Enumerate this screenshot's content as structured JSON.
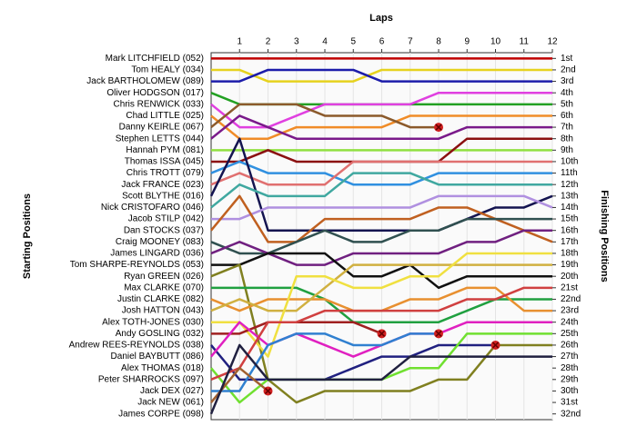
{
  "chart_data": {
    "type": "line",
    "title": "Laps",
    "y_label": "Starting Positions",
    "y2_label": "Finishing Positions",
    "inverted_y": true,
    "x": [
      0,
      1,
      2,
      3,
      4,
      5,
      6,
      7,
      8,
      9,
      10,
      11,
      12
    ],
    "xlim": [
      0,
      12
    ],
    "xticks": [
      1,
      2,
      3,
      4,
      5,
      6,
      7,
      8,
      9,
      10,
      11,
      12
    ],
    "ylim": [
      0.5,
      32.5
    ],
    "y2lim": [
      0.5,
      32.5
    ],
    "y2ticks": [
      {
        "value": 1,
        "label": "1st"
      },
      {
        "value": 2,
        "label": "2nd"
      },
      {
        "value": 3,
        "label": "3rd"
      },
      {
        "value": 4,
        "label": "4th"
      },
      {
        "value": 5,
        "label": "5th"
      },
      {
        "value": 6,
        "label": "6th"
      },
      {
        "value": 7,
        "label": "7th"
      },
      {
        "value": 8,
        "label": "8th"
      },
      {
        "value": 9,
        "label": "9th"
      },
      {
        "value": 10,
        "label": "10th"
      },
      {
        "value": 11,
        "label": "11th"
      },
      {
        "value": 12,
        "label": "12th"
      },
      {
        "value": 13,
        "label": "13th"
      },
      {
        "value": 14,
        "label": "14th"
      },
      {
        "value": 15,
        "label": "15th"
      },
      {
        "value": 16,
        "label": "16th"
      },
      {
        "value": 17,
        "label": "17th"
      },
      {
        "value": 18,
        "label": "18th"
      },
      {
        "value": 19,
        "label": "19th"
      },
      {
        "value": 20,
        "label": "20th"
      },
      {
        "value": 21,
        "label": "21st"
      },
      {
        "value": 22,
        "label": "22nd"
      },
      {
        "value": 23,
        "label": "23rd"
      },
      {
        "value": 24,
        "label": "24th"
      },
      {
        "value": 25,
        "label": "25th"
      },
      {
        "value": 26,
        "label": "26th"
      },
      {
        "value": 27,
        "label": "27th"
      },
      {
        "value": 28,
        "label": "28th"
      },
      {
        "value": 29,
        "label": "29th"
      },
      {
        "value": 30,
        "label": "30th"
      },
      {
        "value": 31,
        "label": "31st"
      },
      {
        "value": 32,
        "label": "32nd"
      }
    ],
    "series": [
      {
        "name": "Mark LITCHFIELD (052)",
        "color": "#c00000",
        "values": [
          1,
          1,
          1,
          1,
          1,
          1,
          1,
          1,
          1,
          1,
          1,
          1,
          1
        ]
      },
      {
        "name": "Tom HEALY (034)",
        "color": "#e6d21e",
        "values": [
          2,
          2,
          3,
          3,
          3,
          3,
          2,
          2,
          2,
          2,
          2,
          2,
          2
        ]
      },
      {
        "name": "Jack BARTHOLOMEW (089)",
        "color": "#1c1caa",
        "values": [
          3,
          3,
          2,
          2,
          2,
          2,
          3,
          3,
          3,
          3,
          3,
          3,
          3
        ]
      },
      {
        "name": "Oliver HODGSON (017)",
        "color": "#22a022",
        "values": [
          4,
          5,
          5,
          5,
          5,
          5,
          5,
          5,
          5,
          5,
          5,
          5,
          5
        ]
      },
      {
        "name": "Chris RENWICK (033)",
        "color": "#e040e0",
        "values": [
          5,
          7,
          7,
          6,
          5,
          5,
          5,
          5,
          4,
          4,
          4,
          4,
          4
        ]
      },
      {
        "name": "Chad LITTLE (025)",
        "color": "#f08c28",
        "values": [
          6,
          8,
          8,
          7,
          7,
          7,
          7,
          6,
          6,
          6,
          6,
          6,
          6
        ]
      },
      {
        "name": "Danny KEIRLE (067)",
        "color": "#8b5a2b",
        "values": [
          7,
          5,
          5,
          5,
          6,
          6,
          6,
          7,
          7,
          null,
          null,
          null,
          null
        ]
      },
      {
        "name": "Stephen LETTS (044)",
        "color": "#7a1a8a",
        "values": [
          8,
          6,
          7,
          8,
          8,
          8,
          8,
          8,
          8,
          7,
          7,
          7,
          7
        ]
      },
      {
        "name": "Hannah PYM (081)",
        "color": "#90e040",
        "values": [
          9,
          9,
          9,
          9,
          9,
          9,
          9,
          9,
          9,
          9,
          9,
          9,
          9
        ]
      },
      {
        "name": "Thomas ISSA (045)",
        "color": "#8b1010",
        "values": [
          10,
          10,
          9,
          10,
          10,
          10,
          10,
          10,
          10,
          8,
          8,
          8,
          8
        ]
      },
      {
        "name": "Chris TROTT (079)",
        "color": "#3090e0",
        "values": [
          11,
          10,
          11,
          11,
          11,
          12,
          12,
          12,
          11,
          11,
          11,
          11,
          11
        ]
      },
      {
        "name": "Jack FRANCE (023)",
        "color": "#e07070",
        "values": [
          12,
          11,
          12,
          12,
          12,
          10,
          10,
          10,
          10,
          10,
          10,
          10,
          10
        ]
      },
      {
        "name": "Scott BLYTHE (016)",
        "color": "#141450",
        "values": [
          13,
          8,
          16,
          16,
          16,
          16,
          16,
          16,
          16,
          15,
          14,
          14,
          13
        ]
      },
      {
        "name": "Nick CRISTOFARO (046)",
        "color": "#40a8a0",
        "values": [
          14,
          12,
          13,
          13,
          13,
          11,
          11,
          11,
          12,
          12,
          12,
          12,
          12
        ]
      },
      {
        "name": "Jacob STILP (042)",
        "color": "#b090e0",
        "values": [
          15,
          15,
          14,
          14,
          14,
          14,
          14,
          14,
          13,
          13,
          13,
          13,
          14
        ]
      },
      {
        "name": "Dan STOCKS (037)",
        "color": "#c06020",
        "values": [
          16,
          13,
          17,
          17,
          15,
          15,
          15,
          15,
          14,
          14,
          15,
          16,
          17
        ]
      },
      {
        "name": "Craig MOONEY (083)",
        "color": "#305050",
        "values": [
          17,
          18,
          18,
          17,
          16,
          17,
          17,
          16,
          16,
          15,
          15,
          15,
          15
        ]
      },
      {
        "name": "James LINGARD (036)",
        "color": "#702080",
        "values": [
          18,
          17,
          18,
          19,
          19,
          18,
          18,
          18,
          18,
          17,
          17,
          16,
          16
        ]
      },
      {
        "name": "Tom SHARPE-REYNOLDS (053)",
        "color": "#101010",
        "values": [
          19,
          19,
          18,
          18,
          18,
          20,
          20,
          19,
          21,
          20,
          20,
          20,
          20
        ]
      },
      {
        "name": "Ryan GREEN (026)",
        "color": "#808020",
        "values": [
          20,
          19,
          29,
          31,
          30,
          30,
          30,
          30,
          29,
          29,
          26,
          26,
          26
        ]
      },
      {
        "name": "Max CLARKE (070)",
        "color": "#20a040",
        "values": [
          21,
          21,
          21,
          21,
          22,
          24,
          24,
          24,
          24,
          23,
          22,
          22,
          22
        ]
      },
      {
        "name": "Justin CLARKE (082)",
        "color": "#e89030",
        "values": [
          22,
          23,
          22,
          22,
          22,
          23,
          23,
          22,
          22,
          21,
          21,
          23,
          23
        ]
      },
      {
        "name": "Josh HATTON (043)",
        "color": "#d0b040",
        "values": [
          23,
          22,
          23,
          23,
          21,
          19,
          19,
          19,
          19,
          19,
          19,
          19,
          19
        ]
      },
      {
        "name": "Alex TOTH-JONES (030)",
        "color": "#f0e040",
        "values": [
          24,
          24,
          27,
          20,
          20,
          21,
          21,
          20,
          20,
          18,
          18,
          18,
          18
        ]
      },
      {
        "name": "Andy GOSLING (032)",
        "color": "#a02020",
        "values": [
          25,
          25,
          24,
          24,
          24,
          24,
          25,
          null,
          null,
          null,
          null,
          null,
          null
        ]
      },
      {
        "name": "Andrew REES-REYNOLDS (038)",
        "color": "#202080",
        "values": [
          26,
          29,
          29,
          29,
          29,
          28,
          27,
          27,
          26,
          26,
          26,
          null,
          null
        ]
      },
      {
        "name": "Daniel BAYBUTT (086)",
        "color": "#e020c0",
        "values": [
          27,
          24,
          26,
          25,
          26,
          27,
          26,
          25,
          25,
          24,
          24,
          24,
          24
        ]
      },
      {
        "name": "Alex THOMAS (018)",
        "color": "#70e030",
        "values": [
          28,
          31,
          29,
          29,
          29,
          29,
          29,
          28,
          28,
          25,
          25,
          25,
          25
        ]
      },
      {
        "name": "Peter SHARROCKS (097)",
        "color": "#d04040",
        "values": [
          29,
          28,
          24,
          24,
          23,
          23,
          23,
          23,
          23,
          22,
          22,
          21,
          21
        ]
      },
      {
        "name": "Jack DEX (027)",
        "color": "#3080d0",
        "values": [
          30,
          30,
          26,
          25,
          25,
          26,
          26,
          25,
          25,
          null,
          null,
          null,
          null
        ]
      },
      {
        "name": "Jack NEW (061)",
        "color": "#a06030",
        "values": [
          31,
          28,
          30,
          null,
          null,
          null,
          null,
          null,
          null,
          null,
          null,
          null,
          null
        ]
      },
      {
        "name": "James CORPE (098)",
        "color": "#202040",
        "values": [
          32,
          26,
          29,
          29,
          29,
          29,
          29,
          27,
          27,
          27,
          27,
          27,
          27
        ]
      }
    ]
  }
}
